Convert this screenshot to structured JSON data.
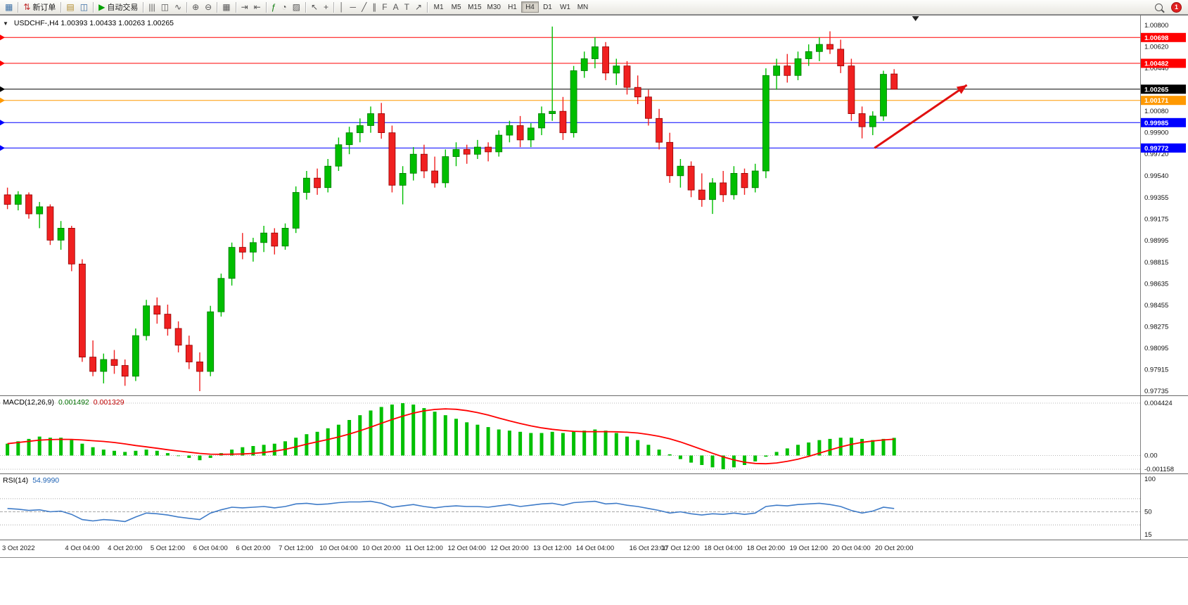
{
  "toolbar": {
    "groups": [
      {
        "items": [
          {
            "name": "new-chart-button",
            "glyph": "▦",
            "color": "#3a6ea5"
          }
        ]
      },
      {
        "items": [
          {
            "name": "new-order-button",
            "glyph": "⇅",
            "color": "#c03030",
            "label": "新订单"
          }
        ]
      },
      {
        "items": [
          {
            "name": "market-watch-button",
            "glyph": "▤",
            "color": "#b08a2a"
          },
          {
            "name": "data-window-button",
            "glyph": "◫",
            "color": "#3a6ea5"
          }
        ]
      },
      {
        "items": [
          {
            "name": "autotrading-button",
            "glyph": "▶",
            "color": "#00a000",
            "label": "自动交易"
          }
        ]
      },
      {
        "items": [
          {
            "name": "bar-chart-button",
            "glyph": "|||"
          },
          {
            "name": "candlestick-chart-button",
            "glyph": "◫"
          },
          {
            "name": "line-chart-button",
            "glyph": "∿"
          }
        ]
      },
      {
        "items": [
          {
            "name": "zoom-in-button",
            "glyph": "⊕"
          },
          {
            "name": "zoom-out-button",
            "glyph": "⊖"
          }
        ]
      },
      {
        "items": [
          {
            "name": "tile-windows-button",
            "glyph": "▦"
          }
        ]
      },
      {
        "items": [
          {
            "name": "auto-scroll-button",
            "glyph": "⇥"
          },
          {
            "name": "chart-shift-button",
            "glyph": "⇤"
          }
        ]
      },
      {
        "items": [
          {
            "name": "indicators-button",
            "glyph": "ƒ",
            "color": "#0a7a0a"
          },
          {
            "name": "periods-button",
            "glyph": "◔"
          },
          {
            "name": "templates-button",
            "glyph": "▨"
          }
        ]
      },
      {
        "items": [
          {
            "name": "cursor-button",
            "glyph": "↖"
          },
          {
            "name": "crosshair-button",
            "glyph": "+"
          }
        ]
      },
      {
        "items": [
          {
            "name": "vertical-line-button",
            "glyph": "│"
          },
          {
            "name": "horizontal-line-button",
            "glyph": "─"
          },
          {
            "name": "trendline-button",
            "glyph": "╱"
          },
          {
            "name": "channel-button",
            "glyph": "∥"
          },
          {
            "name": "fibonacci-button",
            "glyph": "F"
          },
          {
            "name": "text-button",
            "glyph": "A"
          },
          {
            "name": "text-label-button",
            "glyph": "T"
          },
          {
            "name": "arrows-button",
            "glyph": "↗"
          }
        ]
      }
    ],
    "timeframes": [
      "M1",
      "M5",
      "M15",
      "M30",
      "H1",
      "H4",
      "D1",
      "W1",
      "MN"
    ],
    "active_timeframe": "H4",
    "notification_count": "1"
  },
  "chart": {
    "title": "USDCHF-,H4 1.00393 1.00433 1.00263 1.00265",
    "collapse_glyph": "▼",
    "macd_label": "MACD(12,26,9)",
    "macd_value_main": "0.001492",
    "macd_value_signal": "0.001329",
    "rsi_label": "RSI(14)",
    "rsi_value": "54.9990"
  },
  "chart_data": {
    "type": "candlestick",
    "symbol": "USDCHF-",
    "timeframe": "H4",
    "ohlc_display": {
      "open": "1.00393",
      "high": "1.00433",
      "low": "1.00263",
      "close": "1.00265"
    },
    "layout": {
      "candle_area_frac": 0.787,
      "shift_marker_frac": 0.803,
      "legend_position": "top-left",
      "grid": false
    },
    "colors": {
      "up": "#00BE00",
      "down": "#F02020",
      "up_edge": "#007800",
      "down_edge": "#900000"
    },
    "price_axis": {
      "max": 1.008,
      "min": 0.97735,
      "labels": [
        "1.00800",
        "1.00620",
        "1.00440",
        "1.00260",
        "1.00080",
        "0.99900",
        "0.99720",
        "0.99540",
        "0.99355",
        "0.99175",
        "0.98995",
        "0.98815",
        "0.98635",
        "0.98455",
        "0.98275",
        "0.98095",
        "0.97915",
        "0.97735"
      ]
    },
    "hlines": [
      {
        "price": 1.00698,
        "label": "1.00698",
        "color": "#FF0000",
        "kind": "resistance"
      },
      {
        "price": 1.00482,
        "label": "1.00482",
        "color": "#FF0000",
        "kind": "resistance"
      },
      {
        "price": 1.00265,
        "label": "1.00265",
        "color": "#000000",
        "kind": "current-price"
      },
      {
        "price": 1.00171,
        "label": "1.00171",
        "color": "#FF9900",
        "kind": "level"
      },
      {
        "price": 0.99985,
        "label": "0.99985",
        "color": "#0000FF",
        "kind": "support"
      },
      {
        "price": 0.99772,
        "label": "0.99772",
        "color": "#0000FF",
        "kind": "support"
      }
    ],
    "arrow": {
      "x_frac_start": 0.767,
      "price_start": 0.99772,
      "x_frac_end": 0.848,
      "price_end": 1.003,
      "color": "#E01010"
    },
    "candles": [
      [
        0.9938,
        0.9944,
        0.9926,
        0.993
      ],
      [
        0.993,
        0.9941,
        0.9925,
        0.9938
      ],
      [
        0.9938,
        0.994,
        0.9918,
        0.9922
      ],
      [
        0.9922,
        0.9932,
        0.991,
        0.9928
      ],
      [
        0.9928,
        0.993,
        0.9896,
        0.99
      ],
      [
        0.99,
        0.9916,
        0.9892,
        0.991
      ],
      [
        0.991,
        0.9912,
        0.9874,
        0.988
      ],
      [
        0.988,
        0.9884,
        0.9798,
        0.9802
      ],
      [
        0.9802,
        0.9816,
        0.9786,
        0.979
      ],
      [
        0.979,
        0.9805,
        0.978,
        0.98
      ],
      [
        0.98,
        0.9808,
        0.9788,
        0.9795
      ],
      [
        0.9795,
        0.98,
        0.9778,
        0.9786
      ],
      [
        0.9786,
        0.9826,
        0.9782,
        0.982
      ],
      [
        0.982,
        0.985,
        0.9816,
        0.9845
      ],
      [
        0.9845,
        0.9852,
        0.983,
        0.9838
      ],
      [
        0.9838,
        0.9846,
        0.982,
        0.9826
      ],
      [
        0.9826,
        0.9832,
        0.9806,
        0.9812
      ],
      [
        0.9812,
        0.982,
        0.9792,
        0.9798
      ],
      [
        0.9798,
        0.9806,
        0.97735,
        0.979
      ],
      [
        0.979,
        0.9845,
        0.9786,
        0.984
      ],
      [
        0.984,
        0.9872,
        0.9836,
        0.9868
      ],
      [
        0.9868,
        0.9898,
        0.9862,
        0.9894
      ],
      [
        0.9894,
        0.9906,
        0.9884,
        0.989
      ],
      [
        0.989,
        0.9902,
        0.9882,
        0.9898
      ],
      [
        0.9898,
        0.9912,
        0.989,
        0.9906
      ],
      [
        0.9906,
        0.991,
        0.9888,
        0.9895
      ],
      [
        0.9895,
        0.9914,
        0.9892,
        0.991
      ],
      [
        0.991,
        0.9945,
        0.9906,
        0.994
      ],
      [
        0.994,
        0.9958,
        0.9934,
        0.9952
      ],
      [
        0.9952,
        0.996,
        0.9938,
        0.9944
      ],
      [
        0.9944,
        0.9968,
        0.994,
        0.9962
      ],
      [
        0.9962,
        0.9986,
        0.9958,
        0.998
      ],
      [
        0.998,
        0.9995,
        0.9972,
        0.999
      ],
      [
        0.999,
        1.0002,
        0.9982,
        0.9996
      ],
      [
        0.9996,
        1.0012,
        0.999,
        1.0006
      ],
      [
        1.0006,
        1.0015,
        0.9985,
        0.999
      ],
      [
        0.999,
        0.9996,
        0.994,
        0.9946
      ],
      [
        0.9946,
        0.9962,
        0.993,
        0.9956
      ],
      [
        0.9956,
        0.9978,
        0.995,
        0.9972
      ],
      [
        0.9972,
        0.998,
        0.9952,
        0.9958
      ],
      [
        0.9958,
        0.997,
        0.9944,
        0.9948
      ],
      [
        0.9948,
        0.9976,
        0.9944,
        0.997
      ],
      [
        0.997,
        0.9982,
        0.9962,
        0.9976
      ],
      [
        0.9976,
        0.998,
        0.9964,
        0.9972
      ],
      [
        0.9972,
        0.9984,
        0.9968,
        0.9978
      ],
      [
        0.9978,
        0.9982,
        0.9966,
        0.9974
      ],
      [
        0.9974,
        0.9992,
        0.997,
        0.9988
      ],
      [
        0.9988,
        1.0,
        0.9982,
        0.9996
      ],
      [
        0.9996,
        1.0004,
        0.9978,
        0.9984
      ],
      [
        0.9984,
        0.9998,
        0.9978,
        0.9994
      ],
      [
        0.9994,
        1.0012,
        0.9988,
        1.0006
      ],
      [
        1.0006,
        1.0079,
        1.0,
        1.0008
      ],
      [
        1.0008,
        1.002,
        0.9984,
        0.999
      ],
      [
        0.999,
        1.0046,
        0.9986,
        1.0042
      ],
      [
        1.0042,
        1.0058,
        1.0036,
        1.0052
      ],
      [
        1.0052,
        1.007,
        1.0044,
        1.0062
      ],
      [
        1.0062,
        1.0066,
        1.0034,
        1.004
      ],
      [
        1.004,
        1.0052,
        1.003,
        1.0046
      ],
      [
        1.0046,
        1.005,
        1.0022,
        1.0028
      ],
      [
        1.0028,
        1.0038,
        1.0014,
        1.002
      ],
      [
        1.002,
        1.0026,
        0.9996,
        1.0002
      ],
      [
        1.0002,
        1.001,
        0.9976,
        0.9982
      ],
      [
        0.9982,
        0.999,
        0.9948,
        0.9954
      ],
      [
        0.9954,
        0.9968,
        0.9944,
        0.9962
      ],
      [
        0.9962,
        0.9966,
        0.9936,
        0.9942
      ],
      [
        0.9942,
        0.9956,
        0.9928,
        0.9934
      ],
      [
        0.9934,
        0.9952,
        0.9922,
        0.9948
      ],
      [
        0.9948,
        0.9958,
        0.9932,
        0.9938
      ],
      [
        0.9938,
        0.9962,
        0.9934,
        0.9956
      ],
      [
        0.9956,
        0.996,
        0.9938,
        0.9944
      ],
      [
        0.9944,
        0.9964,
        0.994,
        0.9958
      ],
      [
        0.9958,
        1.0044,
        0.9952,
        1.0038
      ],
      [
        1.0038,
        1.0052,
        1.0026,
        1.0046
      ],
      [
        1.0046,
        1.0056,
        1.0032,
        1.0038
      ],
      [
        1.0038,
        1.0058,
        1.0034,
        1.0052
      ],
      [
        1.0052,
        1.0064,
        1.0046,
        1.0058
      ],
      [
        1.0058,
        1.007,
        1.005,
        1.0064
      ],
      [
        1.0064,
        1.0075,
        1.0056,
        1.006
      ],
      [
        1.006,
        1.0068,
        1.004,
        1.0046
      ],
      [
        1.0046,
        1.0052,
        1.0,
        1.0006
      ],
      [
        1.0006,
        1.0012,
        0.99853,
        0.9995
      ],
      [
        0.9995,
        1.0008,
        0.9988,
        1.0004
      ],
      [
        1.0004,
        1.0042,
        1.0,
        1.0039
      ],
      [
        1.00393,
        1.00433,
        1.00263,
        1.00265
      ]
    ],
    "time_labels": [
      {
        "text": "3 Oct 2022",
        "candle": 0
      },
      {
        "text": "4 Oct 04:00",
        "candle": 7
      },
      {
        "text": "4 Oct 20:00",
        "candle": 11
      },
      {
        "text": "5 Oct 12:00",
        "candle": 15
      },
      {
        "text": "6 Oct 04:00",
        "candle": 19
      },
      {
        "text": "6 Oct 20:00",
        "candle": 23
      },
      {
        "text": "7 Oct 12:00",
        "candle": 27
      },
      {
        "text": "10 Oct 04:00",
        "candle": 31
      },
      {
        "text": "10 Oct 20:00",
        "candle": 35
      },
      {
        "text": "11 Oct 12:00",
        "candle": 39
      },
      {
        "text": "12 Oct 04:00",
        "candle": 43
      },
      {
        "text": "12 Oct 20:00",
        "candle": 47
      },
      {
        "text": "13 Oct 12:00",
        "candle": 51
      },
      {
        "text": "14 Oct 04:00",
        "candle": 55
      },
      {
        "text": "16 Oct 23:00",
        "candle": 60
      },
      {
        "text": "17 Oct 12:00",
        "candle": 63
      },
      {
        "text": "18 Oct 04:00",
        "candle": 67
      },
      {
        "text": "18 Oct 20:00",
        "candle": 71
      },
      {
        "text": "19 Oct 12:00",
        "candle": 75
      },
      {
        "text": "20 Oct 04:00",
        "candle": 79
      },
      {
        "text": "20 Oct 20:00",
        "candle": 83
      }
    ],
    "macd": {
      "hist_color": "#00C000",
      "signal_color": "#FF0000",
      "axis_labels": [
        "0.004424",
        "0.00",
        "-0.001158"
      ],
      "axis_values": [
        0.004424,
        0.0,
        -0.001158
      ],
      "histogram": [
        0.001,
        0.0012,
        0.0014,
        0.0016,
        0.0015,
        0.0015,
        0.0013,
        0.001,
        0.0007,
        0.0005,
        0.0004,
        0.0003,
        0.0004,
        0.0005,
        0.0004,
        0.0002,
        0.0,
        -0.0002,
        -0.0004,
        -0.0002,
        0.0002,
        0.0005,
        0.0007,
        0.0008,
        0.0009,
        0.001,
        0.0012,
        0.0015,
        0.0018,
        0.002,
        0.0023,
        0.0026,
        0.003,
        0.0034,
        0.0038,
        0.0041,
        0.0043,
        0.00442,
        0.0043,
        0.004,
        0.0037,
        0.0034,
        0.0031,
        0.0028,
        0.0026,
        0.0024,
        0.0022,
        0.0021,
        0.002,
        0.0019,
        0.0019,
        0.002,
        0.0019,
        0.002,
        0.0021,
        0.0022,
        0.0021,
        0.0019,
        0.0016,
        0.0013,
        0.0009,
        0.0005,
        0.0001,
        -0.0003,
        -0.0006,
        -0.0008,
        -0.001,
        -0.00116,
        -0.001,
        -0.0008,
        -0.0005,
        -0.0001,
        0.0003,
        0.0006,
        0.0009,
        0.0011,
        0.0013,
        0.0014,
        0.0015,
        0.0015,
        0.0014,
        0.0013,
        0.0014,
        0.001492
      ]
    },
    "rsi": {
      "color": "#3E7BC8",
      "axis_labels": [
        [
          "100",
          100
        ],
        [
          "50",
          50
        ],
        [
          "15",
          15
        ]
      ],
      "levels": [
        70,
        50,
        30
      ],
      "range": [
        15,
        100
      ],
      "values": [
        55,
        54,
        52,
        53,
        50,
        51,
        46,
        38,
        36,
        38,
        37,
        35,
        42,
        48,
        47,
        45,
        42,
        40,
        38,
        48,
        53,
        57,
        56,
        57,
        58,
        56,
        58,
        62,
        63,
        61,
        62,
        64,
        65,
        65,
        66,
        63,
        57,
        59,
        61,
        58,
        56,
        58,
        59,
        58,
        58,
        57,
        59,
        61,
        58,
        60,
        62,
        63,
        60,
        64,
        65,
        66,
        62,
        63,
        60,
        58,
        55,
        52,
        48,
        50,
        47,
        45,
        47,
        46,
        48,
        46,
        48,
        58,
        60,
        59,
        61,
        62,
        63,
        61,
        58,
        52,
        48,
        51,
        57,
        55
      ]
    }
  }
}
